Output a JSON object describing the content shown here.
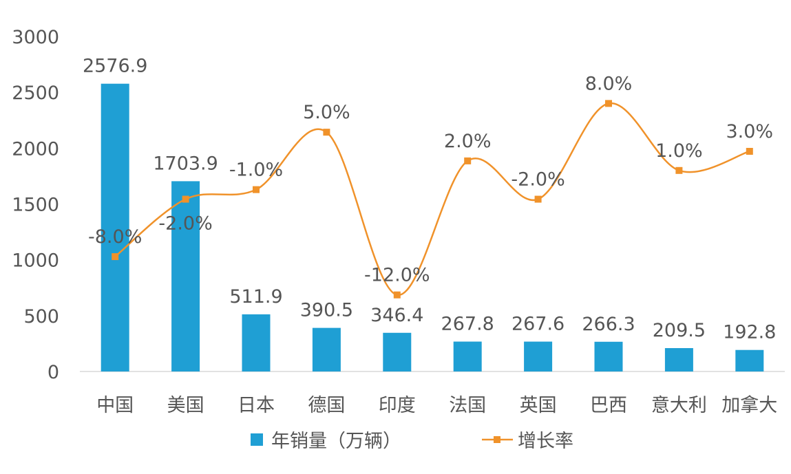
{
  "chart_data": {
    "type": "bar",
    "categories": [
      "中国",
      "美国",
      "日本",
      "德国",
      "印度",
      "法国",
      "英国",
      "巴西",
      "意大利",
      "加拿大"
    ],
    "series": [
      {
        "name": "年销量（万辆）",
        "type": "bar",
        "values": [
          2576.9,
          1703.9,
          511.9,
          390.5,
          346.4,
          267.8,
          267.6,
          266.3,
          209.5,
          192.8
        ],
        "labels": [
          "2576.9",
          "1703.9",
          "511.9",
          "390.5",
          "346.4",
          "267.8",
          "267.6",
          "266.3",
          "209.5",
          "192.8"
        ],
        "color": "#1f9fd4"
      },
      {
        "name": "增长率",
        "type": "line",
        "values": [
          -8.0,
          -2.0,
          -1.0,
          5.0,
          -12.0,
          2.0,
          -2.0,
          8.0,
          1.0,
          3.0
        ],
        "labels": [
          "-8.0%",
          "-2.0%",
          "-1.0%",
          "5.0%",
          "-12.0%",
          "2.0%",
          "-2.0%",
          "8.0%",
          "1.0%",
          "3.0%"
        ],
        "color": "#f0922a",
        "smooth": true
      }
    ],
    "yticks": [
      "0",
      "500",
      "1000",
      "1500",
      "2000",
      "2500",
      "3000"
    ],
    "ylim": [
      0,
      3000
    ],
    "y2lim": [
      -20,
      15
    ],
    "grid": false,
    "legend": "bottom"
  }
}
